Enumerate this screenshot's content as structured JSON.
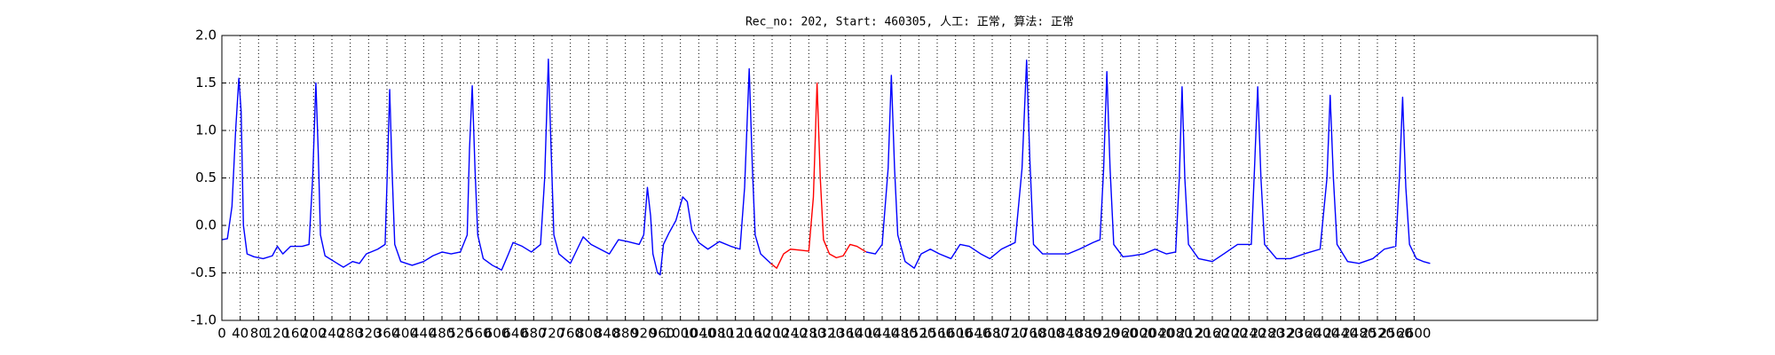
{
  "chart_data": {
    "type": "line",
    "title": "Rec_no: 202, Start: 460305, 人工: 正常, 算法: 正常",
    "xlim": [
      0,
      3000
    ],
    "ylim": [
      -1.0,
      2.0
    ],
    "xticks": [
      0,
      40,
      80,
      120,
      160,
      200,
      240,
      280,
      320,
      360,
      400,
      440,
      480,
      520,
      560,
      600,
      640,
      680,
      720,
      760,
      800,
      840,
      880,
      920,
      960,
      1000,
      1040,
      1080,
      1120,
      1160,
      1200,
      1240,
      1280,
      1320,
      1360,
      1400,
      1440,
      1480,
      1520,
      1560,
      1600,
      1640,
      1680,
      1720,
      1760,
      1800,
      1840,
      1880,
      1920,
      1960,
      2000,
      2040,
      2080,
      2120,
      2160,
      2200,
      2240,
      2280,
      2320,
      2360,
      2400,
      2440,
      2480,
      2520,
      2560,
      2600
    ],
    "yticks": [
      {
        "value": -1.0,
        "label": "-1.0"
      },
      {
        "value": -0.5,
        "label": "-0.5"
      },
      {
        "value": 0.0,
        "label": "0.0"
      },
      {
        "value": 0.5,
        "label": "0.5"
      },
      {
        "value": 1.0,
        "label": "1.0"
      },
      {
        "value": 1.5,
        "label": "1.5"
      },
      {
        "value": 2.0,
        "label": "2.0"
      }
    ],
    "grid": true,
    "series": [
      {
        "color": "#0000ff",
        "x": [
          0,
          12,
          22,
          30,
          37,
          42,
          47,
          55,
          70,
          90,
          110,
          121,
          133,
          150,
          175,
          190,
          198,
          205,
          210,
          215,
          225,
          245,
          265,
          285,
          300,
          315,
          340,
          356,
          361,
          366,
          371,
          377,
          390,
          415,
          440,
          460,
          480,
          500,
          520,
          535,
          540,
          546,
          552,
          558,
          570,
          590,
          610,
          625,
          635,
          655,
          675,
          695,
          704,
          712,
          718,
          724,
          735,
          760,
          775,
          788,
          805,
          825,
          845,
          865,
          885,
          910,
          920,
          928,
          935,
          940,
          950,
          956,
          963,
          975,
          990,
          1005,
          1015,
          1025,
          1040,
          1060,
          1085,
          1110,
          1130,
          1140,
          1150,
          1157,
          1163,
          1175,
          1197,
          1298,
          1405,
          1425,
          1440,
          1453,
          1460,
          1467,
          1474,
          1490,
          1510,
          1525,
          1545,
          1565,
          1590,
          1610,
          1630,
          1655,
          1675,
          1700,
          1730,
          1745,
          1755,
          1762,
          1770,
          1790,
          1820,
          1845,
          1870,
          1900,
          1915,
          1923,
          1930,
          1937,
          1945,
          1965,
          1985,
          2010,
          2035,
          2060,
          2080,
          2088,
          2094,
          2100,
          2108,
          2130,
          2160,
          2185,
          2215,
          2245,
          2252,
          2259,
          2266,
          2274,
          2300,
          2330,
          2360,
          2395,
          2410,
          2417,
          2424,
          2432,
          2455,
          2480,
          2510,
          2535,
          2560,
          2568,
          2575,
          2582,
          2590,
          2605,
          2620,
          2635
        ],
        "values": [
          -0.15,
          -0.14,
          0.2,
          1.0,
          1.55,
          1.2,
          0.0,
          -0.3,
          -0.33,
          -0.35,
          -0.32,
          -0.22,
          -0.3,
          -0.22,
          -0.22,
          -0.2,
          0.5,
          1.5,
          0.8,
          -0.1,
          -0.32,
          -0.38,
          -0.44,
          -0.38,
          -0.4,
          -0.3,
          -0.25,
          -0.2,
          0.6,
          1.43,
          0.6,
          -0.2,
          -0.38,
          -0.42,
          -0.38,
          -0.32,
          -0.28,
          -0.3,
          -0.28,
          -0.1,
          0.8,
          1.47,
          0.6,
          -0.1,
          -0.35,
          -0.42,
          -0.47,
          -0.3,
          -0.18,
          -0.22,
          -0.28,
          -0.2,
          0.5,
          1.75,
          0.8,
          -0.1,
          -0.3,
          -0.4,
          -0.25,
          -0.12,
          -0.2,
          -0.25,
          -0.3,
          -0.15,
          -0.17,
          -0.2,
          -0.1,
          0.4,
          0.1,
          -0.3,
          -0.5,
          -0.52,
          -0.2,
          -0.08,
          0.05,
          0.3,
          0.25,
          -0.05,
          -0.18,
          -0.25,
          -0.17,
          -0.22,
          -0.25,
          0.4,
          1.65,
          0.6,
          -0.1,
          -0.3,
          -0.4,
          null,
          -0.28,
          -0.3,
          -0.2,
          0.6,
          1.58,
          0.6,
          -0.1,
          -0.38,
          -0.45,
          -0.3,
          -0.25,
          -0.3,
          -0.35,
          -0.2,
          -0.22,
          -0.3,
          -0.35,
          -0.25,
          -0.18,
          0.6,
          1.74,
          0.7,
          -0.2,
          -0.3,
          -0.3,
          -0.3,
          -0.25,
          -0.18,
          -0.15,
          0.6,
          1.62,
          0.6,
          -0.2,
          -0.33,
          -0.32,
          -0.3,
          -0.25,
          -0.3,
          -0.28,
          0.5,
          1.46,
          0.5,
          -0.2,
          -0.35,
          -0.38,
          -0.3,
          -0.2,
          -0.2,
          0.6,
          1.46,
          0.5,
          -0.2,
          -0.35,
          -0.35,
          -0.3,
          -0.25,
          0.5,
          1.37,
          0.5,
          -0.2,
          -0.38,
          -0.4,
          -0.35,
          -0.25,
          -0.22,
          0.5,
          1.35,
          0.4,
          -0.2,
          -0.35,
          -0.38,
          -0.4
        ]
      },
      {
        "color": "#ff0000",
        "x": [
          1197,
          1210,
          1225,
          1240,
          1260,
          1280,
          1290,
          1298,
          1305,
          1312,
          1325,
          1340,
          1355,
          1370,
          1385,
          1405
        ],
        "values": [
          -0.4,
          -0.45,
          -0.3,
          -0.25,
          -0.26,
          -0.27,
          0.3,
          1.5,
          0.5,
          -0.15,
          -0.3,
          -0.34,
          -0.32,
          -0.2,
          -0.22,
          -0.28
        ]
      }
    ]
  }
}
